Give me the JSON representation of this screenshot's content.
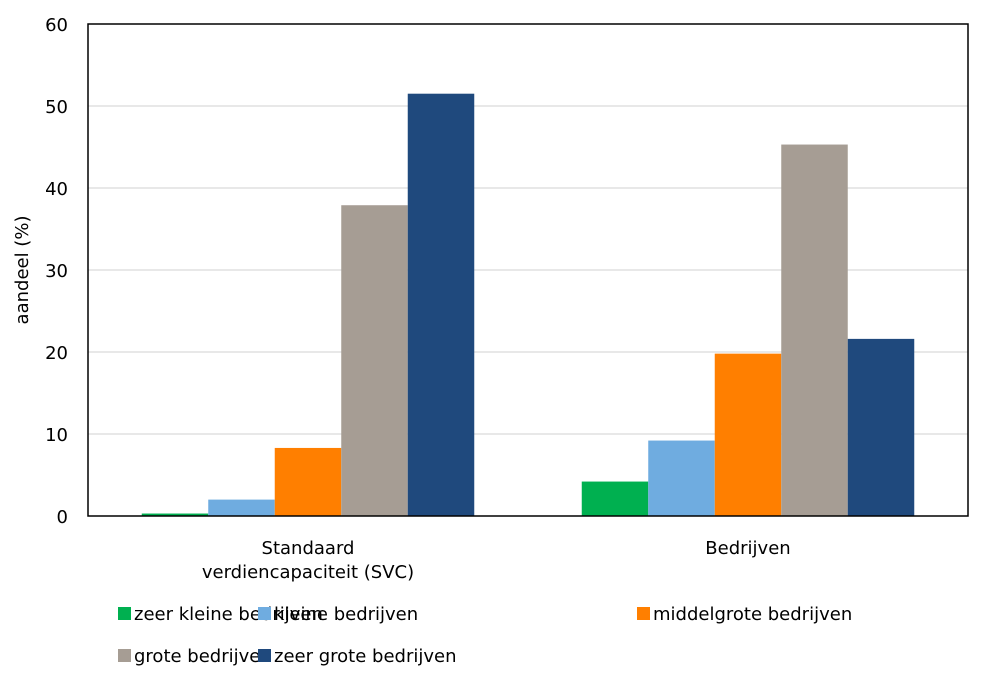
{
  "chart_data": {
    "type": "bar",
    "categories": [
      [
        "Standaard",
        "verdiencapaciteit (SVC)"
      ],
      [
        "Bedrijven"
      ]
    ],
    "series": [
      {
        "name": "zeer kleine bedrijven",
        "color": "#00B050",
        "values": [
          0.3,
          4.2
        ]
      },
      {
        "name": "kleine bedrijven",
        "color": "#6FACE0",
        "values": [
          2.0,
          9.2
        ]
      },
      {
        "name": "middelgrote bedrijven",
        "color": "#FF7F00",
        "values": [
          8.3,
          19.8
        ]
      },
      {
        "name": "grote bedrijven",
        "color": "#A69D94",
        "values": [
          37.9,
          45.3
        ]
      },
      {
        "name": "zeer grote bedrijven",
        "color": "#1F497D",
        "values": [
          51.5,
          21.6
        ]
      }
    ],
    "ylabel": "aandeel (%)",
    "xlabel": "",
    "ylim": [
      0,
      60
    ],
    "yticks": [
      0,
      10,
      20,
      30,
      40,
      50,
      60
    ],
    "grid": true,
    "legend_position": "bottom"
  }
}
